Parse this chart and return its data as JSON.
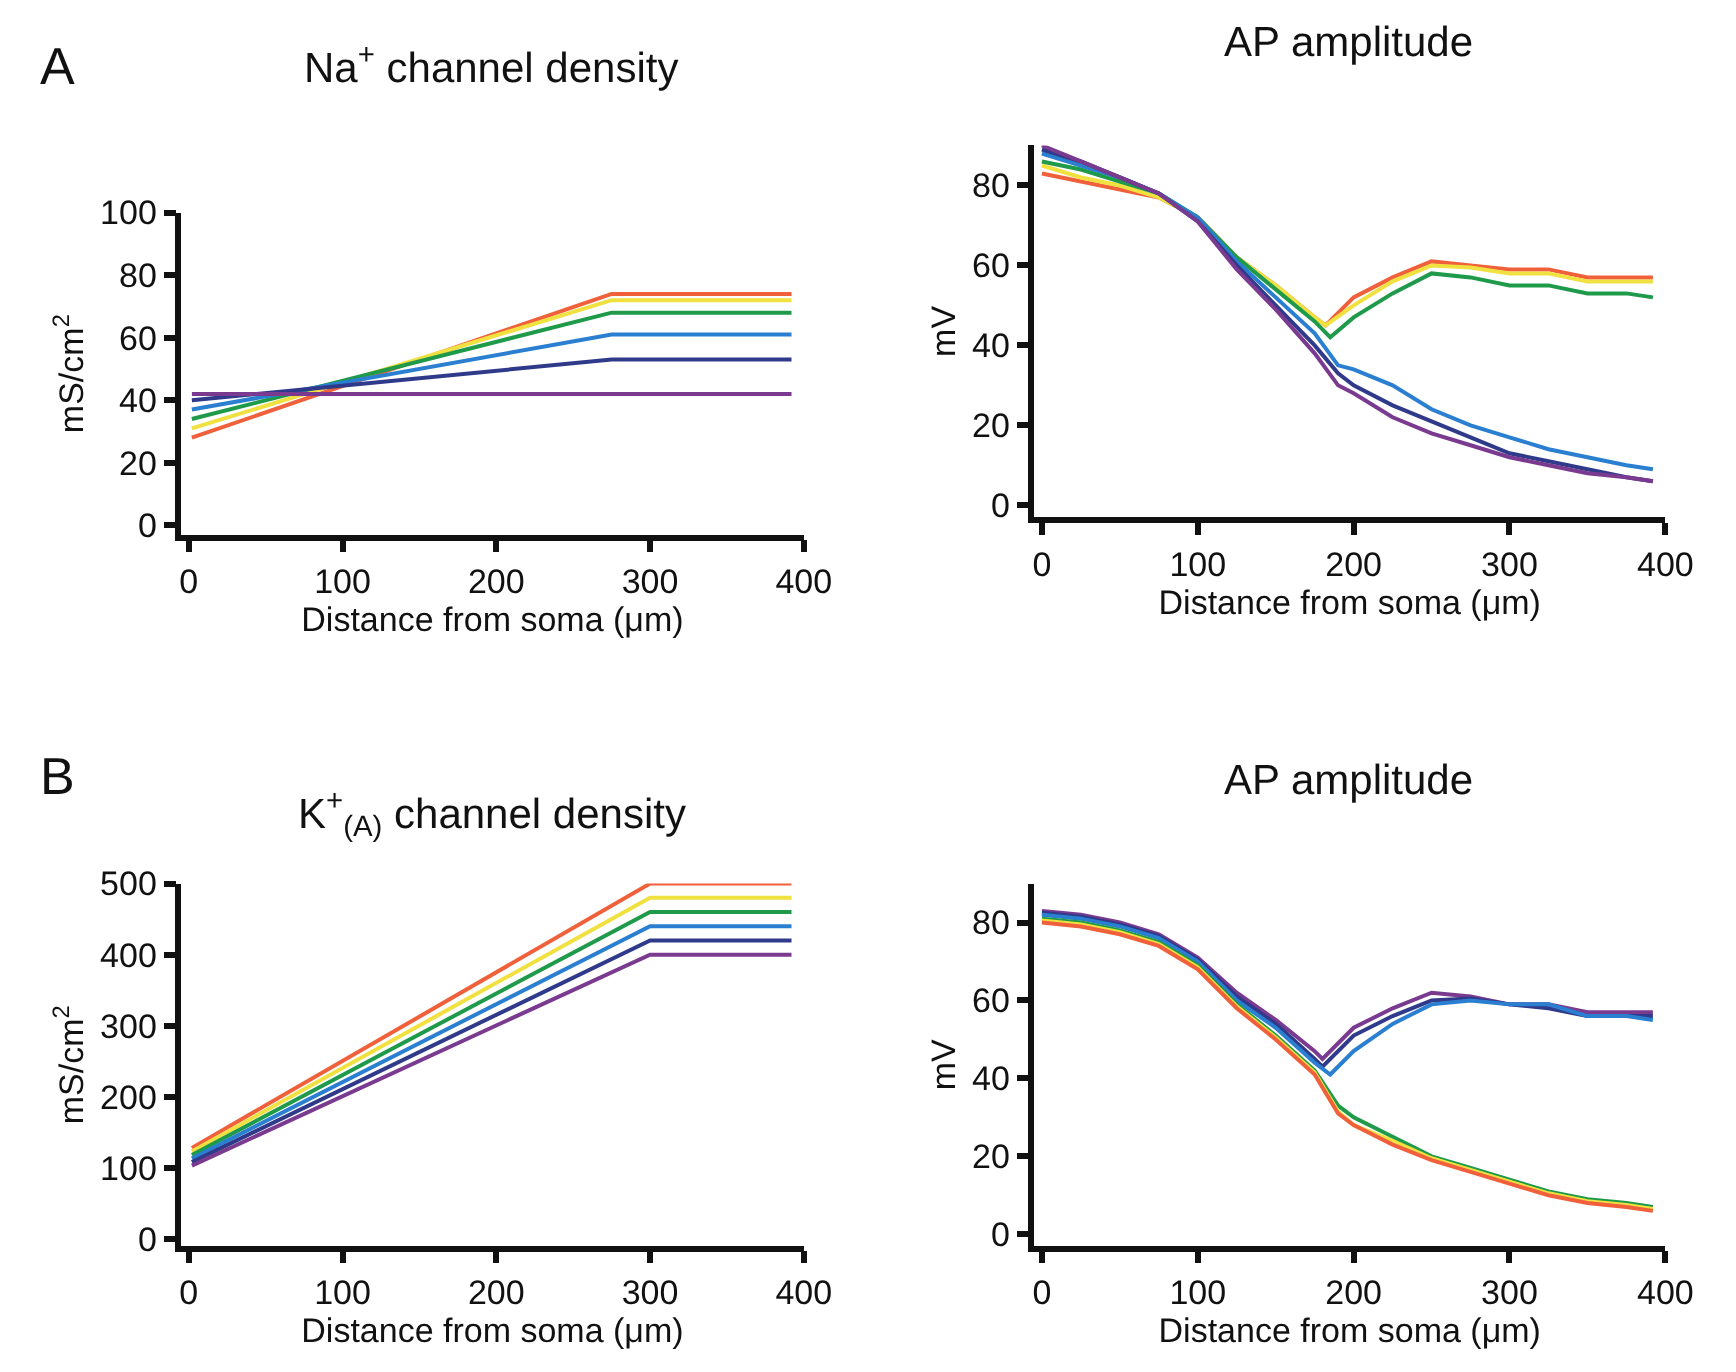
{
  "chart_data": [
    {
      "type": "line",
      "title": "Na$^{+}$ channel density",
      "xlabel": "Distance from soma (μm)",
      "ylabel": "mS/cm$^{2}$",
      "annotations": [
        "A"
      ],
      "xlim": [
        -5,
        400
      ],
      "xticks": [
        0,
        100,
        200,
        300,
        400
      ],
      "ylim": [
        -3,
        100
      ],
      "yticks": [
        0,
        20,
        40,
        60,
        80,
        100
      ],
      "marker": "none",
      "line_style": "solid",
      "series": [
        {
          "color": "#f0603a",
          "x": [
            2,
            275,
            392
          ],
          "values": [
            28,
            74,
            74
          ]
        },
        {
          "color": "#f0e040",
          "x": [
            2,
            275,
            392
          ],
          "values": [
            31,
            72,
            72
          ]
        },
        {
          "color": "#1e9a4a",
          "x": [
            2,
            275,
            392
          ],
          "values": [
            34,
            68,
            68
          ]
        },
        {
          "color": "#2a7fd0",
          "x": [
            2,
            275,
            392
          ],
          "values": [
            37,
            61,
            61
          ]
        },
        {
          "color": "#303a8a",
          "x": [
            2,
            275,
            392
          ],
          "values": [
            40,
            53,
            53
          ]
        },
        {
          "color": "#7a3a90",
          "x": [
            2,
            275,
            392
          ],
          "values": [
            42,
            42,
            42
          ]
        }
      ]
    },
    {
      "type": "line",
      "title": "AP amplitude",
      "xlabel": "Distance from soma (μm)",
      "ylabel": "mV",
      "xlim": [
        -5,
        400
      ],
      "xticks": [
        0,
        100,
        200,
        300,
        400
      ],
      "ylim": [
        -3,
        90
      ],
      "yticks": [
        0,
        20,
        40,
        60,
        80
      ],
      "marker": "none",
      "line_style": "solid",
      "series": [
        {
          "color": "#f0603a",
          "x": [
            0,
            25,
            50,
            75,
            100,
            125,
            150,
            175,
            182,
            200,
            225,
            250,
            275,
            300,
            325,
            350,
            375,
            392
          ],
          "values": [
            83,
            81,
            79,
            77,
            72,
            62,
            55,
            47,
            45,
            52,
            57,
            61,
            60,
            59,
            59,
            57,
            57,
            57
          ]
        },
        {
          "color": "#f0e040",
          "x": [
            0,
            25,
            50,
            75,
            100,
            125,
            150,
            175,
            182,
            200,
            225,
            250,
            275,
            300,
            325,
            350,
            375,
            392
          ],
          "values": [
            85,
            82,
            80,
            77,
            72,
            62,
            55,
            47,
            45,
            50,
            56,
            60,
            59.5,
            58,
            58,
            56,
            56,
            56
          ]
        },
        {
          "color": "#1e9a4a",
          "x": [
            0,
            25,
            50,
            75,
            100,
            125,
            150,
            175,
            185,
            200,
            225,
            250,
            275,
            300,
            325,
            350,
            375,
            392
          ],
          "values": [
            86,
            84,
            81,
            78,
            72,
            62,
            54,
            46,
            42,
            47,
            53,
            58,
            57,
            55,
            55,
            53,
            53,
            52
          ]
        },
        {
          "color": "#2a7fd0",
          "x": [
            0,
            25,
            50,
            75,
            100,
            125,
            150,
            175,
            190,
            200,
            225,
            250,
            275,
            300,
            325,
            350,
            375,
            392
          ],
          "values": [
            88,
            85,
            82,
            78,
            72,
            61,
            52,
            43,
            35,
            34,
            30,
            24,
            20,
            17,
            14,
            12,
            10,
            9
          ]
        },
        {
          "color": "#303a8a",
          "x": [
            0,
            25,
            50,
            75,
            100,
            125,
            150,
            175,
            190,
            200,
            225,
            250,
            275,
            300,
            325,
            350,
            375,
            392
          ],
          "values": [
            89,
            86,
            82,
            78,
            71,
            60,
            50,
            40,
            33,
            30,
            25,
            21,
            17,
            13,
            11,
            9,
            7,
            6
          ]
        },
        {
          "color": "#7a3a90",
          "x": [
            0,
            25,
            50,
            75,
            100,
            125,
            150,
            175,
            190,
            200,
            225,
            250,
            275,
            300,
            325,
            350,
            375,
            392
          ],
          "values": [
            90,
            86,
            82,
            78,
            71,
            59,
            49,
            38,
            30,
            28,
            22,
            18,
            15,
            12,
            10,
            8,
            7,
            6
          ]
        }
      ]
    },
    {
      "type": "line",
      "title": "K$^{+}$$_{(A)}$ channel density",
      "xlabel": "Distance from soma (μm)",
      "ylabel": "mS/cm$^{2}$",
      "annotations": [
        "B"
      ],
      "xlim": [
        -5,
        400
      ],
      "xticks": [
        0,
        100,
        200,
        300,
        400
      ],
      "ylim": [
        -10,
        500
      ],
      "yticks": [
        0,
        100,
        200,
        300,
        400,
        500
      ],
      "marker": "none",
      "line_style": "solid",
      "series": [
        {
          "color": "#f0603a",
          "x": [
            2,
            300,
            392
          ],
          "values": [
            128,
            500,
            500
          ]
        },
        {
          "color": "#f0e040",
          "x": [
            2,
            300,
            392
          ],
          "values": [
            123,
            480,
            480
          ]
        },
        {
          "color": "#1e9a4a",
          "x": [
            2,
            300,
            392
          ],
          "values": [
            118,
            460,
            460
          ]
        },
        {
          "color": "#2a7fd0",
          "x": [
            2,
            300,
            392
          ],
          "values": [
            113,
            440,
            440
          ]
        },
        {
          "color": "#303a8a",
          "x": [
            2,
            300,
            392
          ],
          "values": [
            108,
            420,
            420
          ]
        },
        {
          "color": "#7a3a90",
          "x": [
            2,
            300,
            392
          ],
          "values": [
            103,
            400,
            400
          ]
        }
      ]
    },
    {
      "type": "line",
      "title": "AP amplitude",
      "xlabel": "Distance from soma (μm)",
      "ylabel": "mV",
      "xlim": [
        -5,
        400
      ],
      "xticks": [
        0,
        100,
        200,
        300,
        400
      ],
      "ylim": [
        -3,
        90
      ],
      "yticks": [
        0,
        20,
        40,
        60,
        80
      ],
      "marker": "none",
      "line_style": "solid",
      "series": [
        {
          "color": "#7a3a90",
          "x": [
            0,
            25,
            50,
            75,
            100,
            125,
            150,
            175,
            180,
            200,
            225,
            250,
            275,
            300,
            325,
            350,
            375,
            392
          ],
          "values": [
            83,
            82,
            80,
            77,
            71,
            62,
            55,
            47,
            45,
            53,
            58,
            62,
            61,
            59,
            59,
            57,
            57,
            57
          ]
        },
        {
          "color": "#303a8a",
          "x": [
            0,
            25,
            50,
            75,
            100,
            125,
            150,
            175,
            180,
            200,
            225,
            250,
            275,
            300,
            325,
            350,
            375,
            392
          ],
          "values": [
            82.5,
            81.5,
            79.5,
            76.5,
            70.5,
            61,
            54,
            45,
            43,
            51,
            56,
            60,
            60.5,
            59,
            58,
            56,
            56,
            56
          ]
        },
        {
          "color": "#2a7fd0",
          "x": [
            0,
            25,
            50,
            75,
            100,
            125,
            150,
            175,
            185,
            200,
            225,
            250,
            275,
            300,
            325,
            350,
            375,
            392
          ],
          "values": [
            82,
            81,
            79,
            76,
            70,
            60,
            53,
            44,
            41,
            47,
            54,
            59,
            60,
            59,
            59,
            56,
            56,
            55
          ]
        },
        {
          "color": "#1e9a4a",
          "x": [
            0,
            25,
            50,
            75,
            100,
            125,
            150,
            175,
            190,
            200,
            225,
            250,
            275,
            300,
            325,
            350,
            375,
            392
          ],
          "values": [
            81,
            80,
            78,
            75,
            69,
            59,
            51,
            42,
            33,
            30,
            25,
            20,
            17,
            14,
            11,
            9,
            8,
            7
          ]
        },
        {
          "color": "#f0e040",
          "x": [
            0,
            25,
            50,
            75,
            100,
            125,
            150,
            175,
            190,
            200,
            225,
            250,
            275,
            300,
            325,
            350,
            375,
            392
          ],
          "values": [
            80.5,
            79.5,
            77.5,
            74.5,
            68.5,
            58.5,
            50.5,
            41.5,
            31.5,
            28,
            24,
            19.5,
            16.5,
            13.5,
            10.5,
            8.5,
            7.5,
            6.5
          ]
        },
        {
          "color": "#f0603a",
          "x": [
            0,
            25,
            50,
            75,
            100,
            125,
            150,
            175,
            190,
            200,
            225,
            250,
            275,
            300,
            325,
            350,
            375,
            392
          ],
          "values": [
            80,
            79,
            77,
            74,
            68,
            58,
            50,
            41,
            31,
            28,
            23,
            19,
            16,
            13,
            10,
            8,
            7,
            6
          ]
        }
      ]
    }
  ]
}
